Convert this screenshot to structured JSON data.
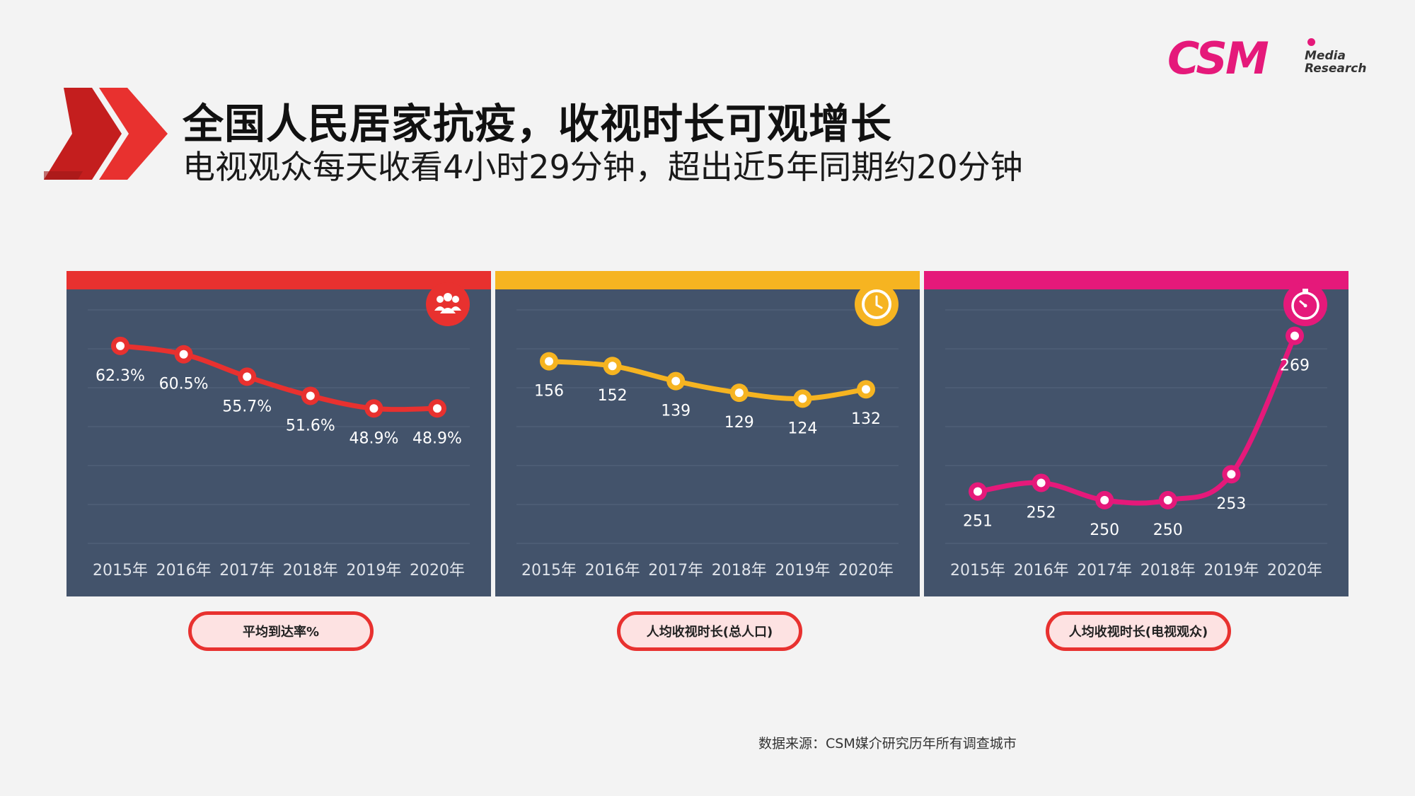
{
  "header": {
    "title": "全国人民居家抗疫，收视时长可观增长",
    "subtitle": "电视观众每天收看4小时29分钟，超出近5年同期约20分钟"
  },
  "logo": {
    "main": "CSM",
    "sub_line1": "Media",
    "sub_line2": "Research"
  },
  "colors": {
    "red": "#e8312f",
    "yellow": "#f6b421",
    "pink": "#e5197a",
    "panel": "#43536b",
    "pill_border": "#e8312f",
    "pill_fill": "#fde2e2"
  },
  "chart_data": [
    {
      "type": "line",
      "x": [
        "2015年",
        "2016年",
        "2017年",
        "2018年",
        "2019年",
        "2020年"
      ],
      "values": [
        62.3,
        60.5,
        55.7,
        51.6,
        48.9,
        48.9
      ],
      "data_labels": [
        "62.3%",
        "60.5%",
        "55.7%",
        "51.6%",
        "48.9%",
        "48.9%"
      ],
      "ylim": [
        20,
        70
      ],
      "label": "平均到达率%",
      "color": "#e8312f",
      "icon": "people-icon"
    },
    {
      "type": "line",
      "x": [
        "2015年",
        "2016年",
        "2017年",
        "2018年",
        "2019年",
        "2020年"
      ],
      "values": [
        156,
        152,
        139,
        129,
        124,
        132
      ],
      "data_labels": [
        "156",
        "152",
        "139",
        "129",
        "124",
        "132"
      ],
      "ylim": [
        0,
        200
      ],
      "label": "人均收视时长(总人口)",
      "color": "#f6b421",
      "icon": "clock-icon"
    },
    {
      "type": "line",
      "x": [
        "2015年",
        "2016年",
        "2017年",
        "2018年",
        "2019年",
        "2020年"
      ],
      "values": [
        251,
        252,
        250,
        250,
        253,
        269
      ],
      "data_labels": [
        "251",
        "252",
        "250",
        "250",
        "253",
        "269"
      ],
      "ylim": [
        245,
        272
      ],
      "label": "人均收视时长(电视观众)",
      "color": "#e5197a",
      "icon": "stopwatch-icon"
    }
  ],
  "footer": {
    "source": "数据来源：CSM媒介研究历年所有调查城市"
  }
}
